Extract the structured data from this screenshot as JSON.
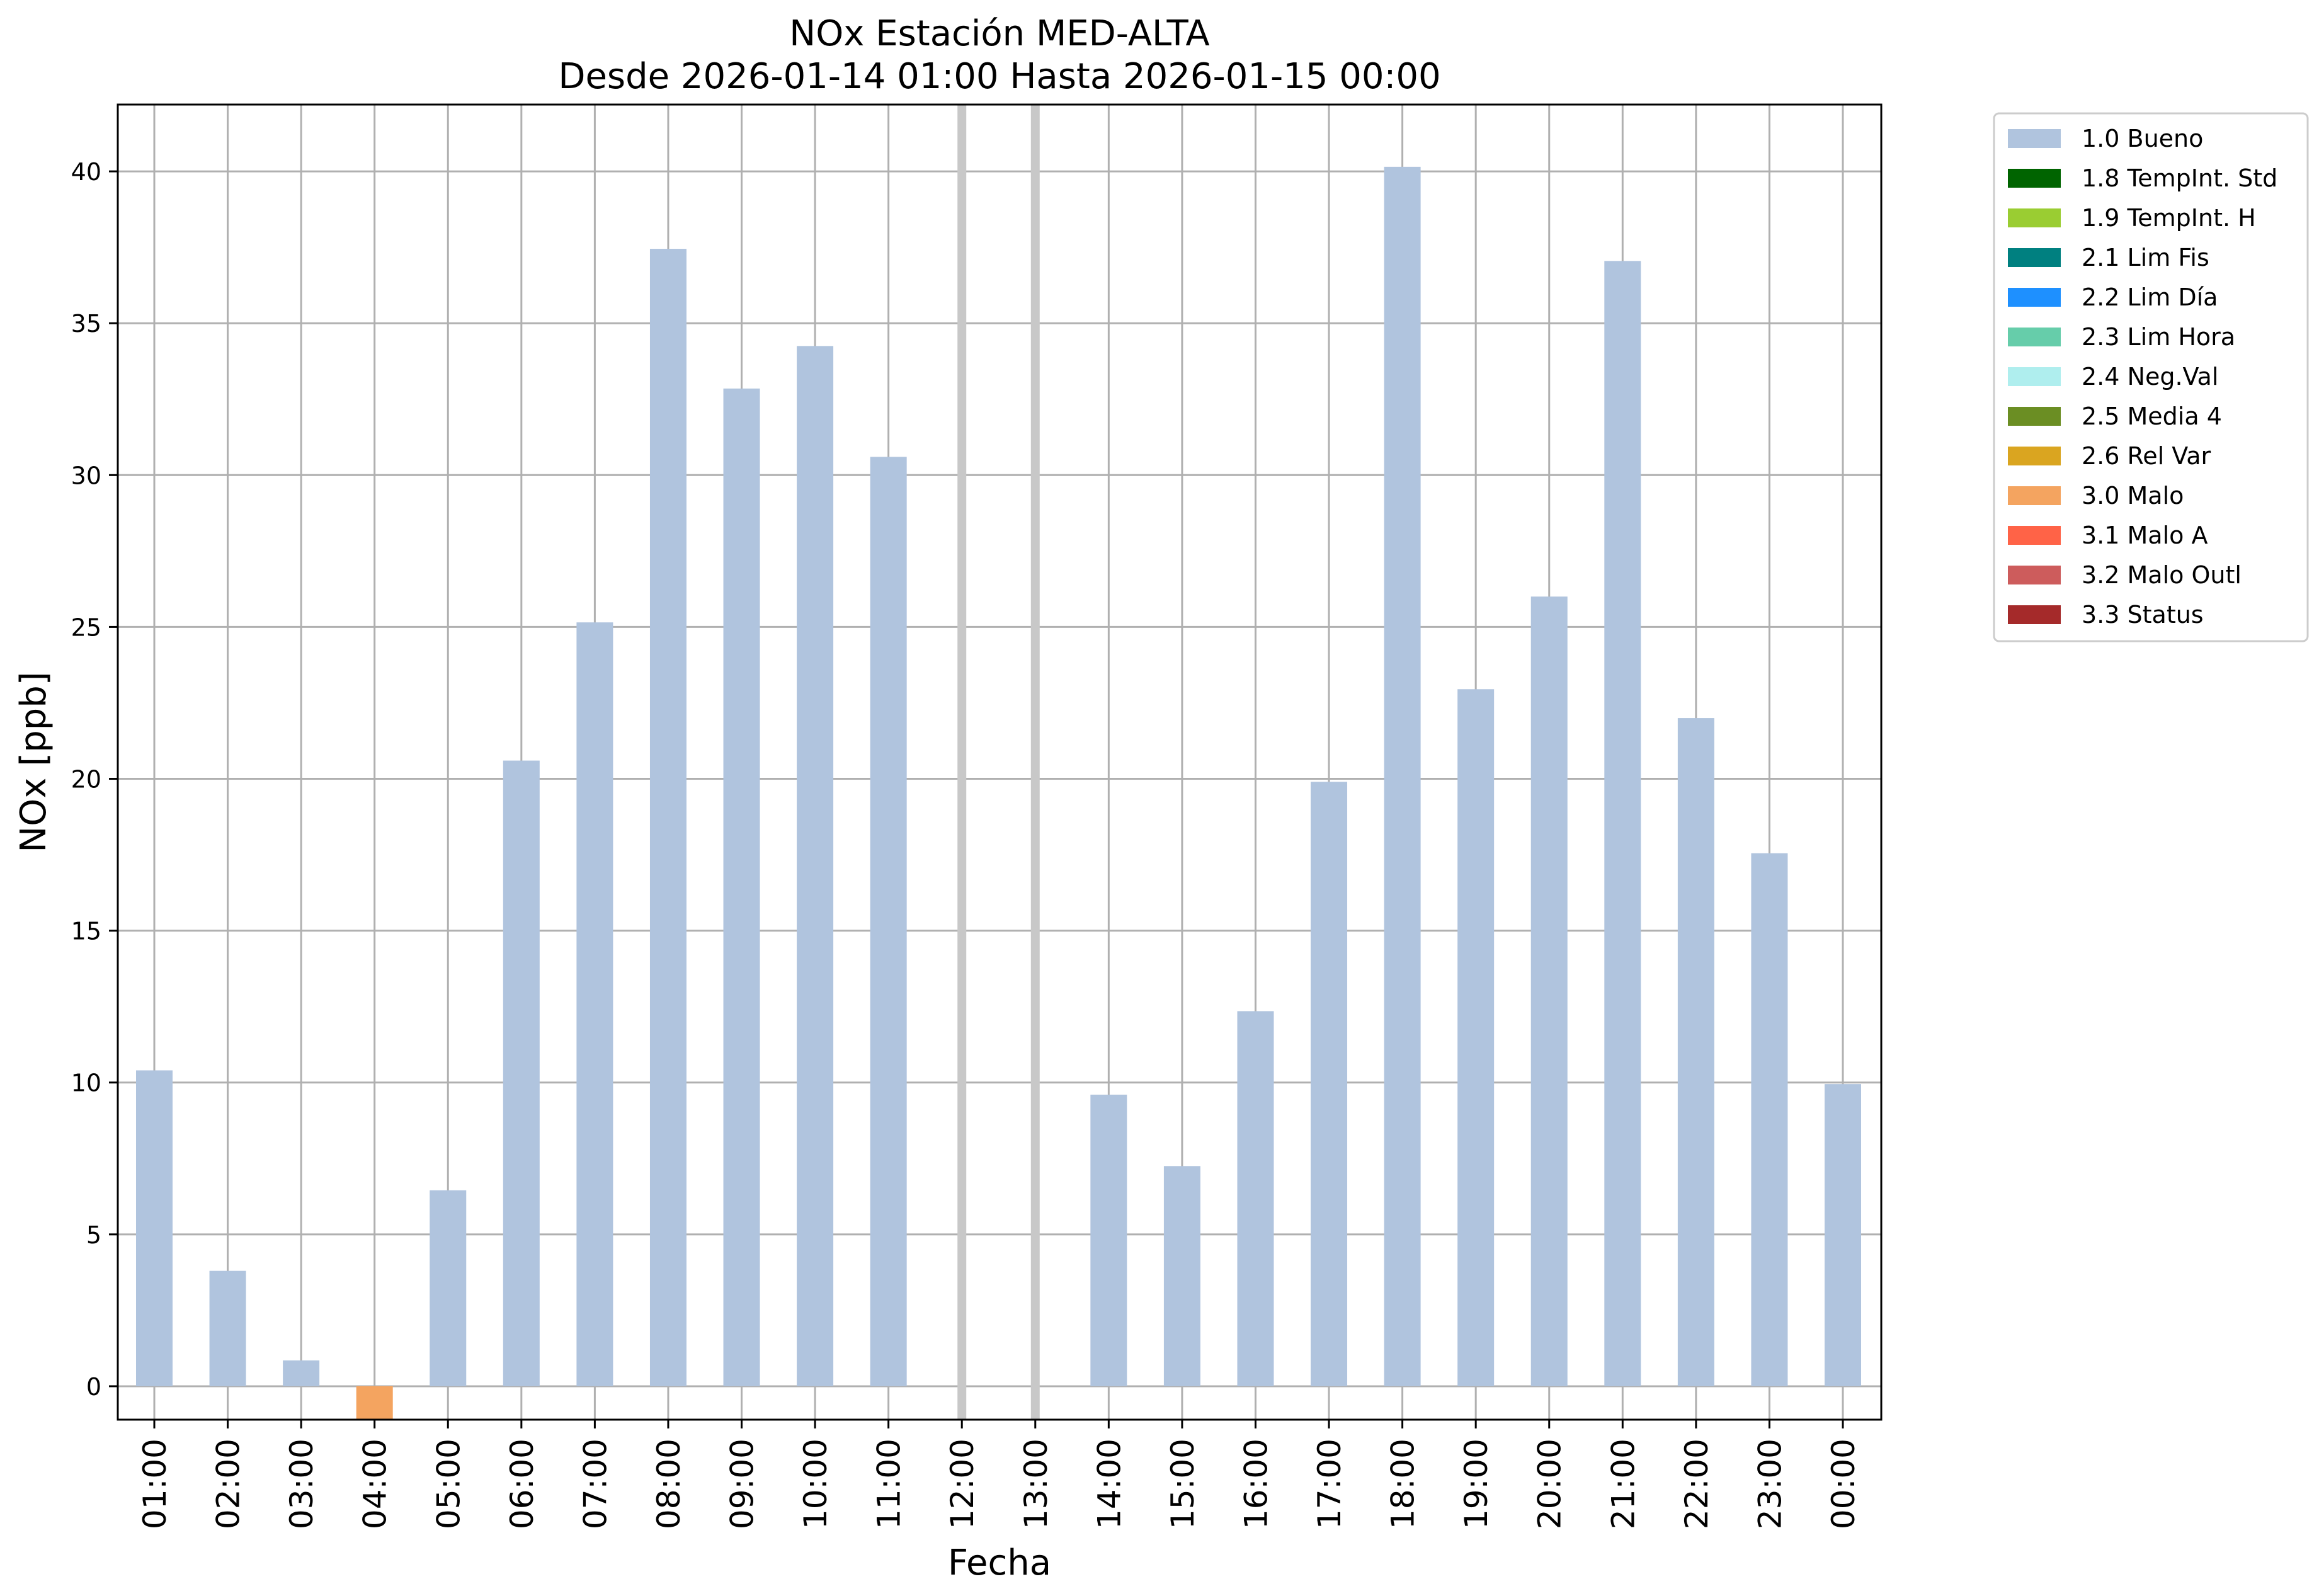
{
  "chart_data": {
    "type": "bar",
    "title_line1": "NOx Estación MED-ALTA",
    "title_line2": "Desde 2026-01-14 01:00 Hasta 2026-01-15 00:00",
    "xlabel": "Fecha",
    "ylabel": "NOx [ppb]",
    "ylim": [
      -1.1,
      42.2
    ],
    "yticks": [
      0,
      5,
      10,
      15,
      20,
      25,
      30,
      35,
      40
    ],
    "grid": true,
    "legend_position": "outside-right-top",
    "categories": [
      "01:00",
      "02:00",
      "03:00",
      "04:00",
      "05:00",
      "06:00",
      "07:00",
      "08:00",
      "09:00",
      "10:00",
      "11:00",
      "12:00",
      "13:00",
      "14:00",
      "15:00",
      "16:00",
      "17:00",
      "18:00",
      "19:00",
      "20:00",
      "21:00",
      "22:00",
      "23:00",
      "00:00"
    ],
    "bars": [
      {
        "value": 10.4,
        "flag": "1.0 Bueno"
      },
      {
        "value": 3.8,
        "flag": "1.0 Bueno"
      },
      {
        "value": 0.85,
        "flag": "1.0 Bueno"
      },
      {
        "value": -1.1,
        "flag": "3.0 Malo"
      },
      {
        "value": 6.45,
        "flag": "1.0 Bueno"
      },
      {
        "value": 20.6,
        "flag": "1.0 Bueno"
      },
      {
        "value": 25.15,
        "flag": "1.0 Bueno"
      },
      {
        "value": 37.45,
        "flag": "1.0 Bueno"
      },
      {
        "value": 32.85,
        "flag": "1.0 Bueno"
      },
      {
        "value": 34.25,
        "flag": "1.0 Bueno"
      },
      {
        "value": 30.6,
        "flag": "1.0 Bueno"
      },
      {
        "value": null,
        "flag": "missing"
      },
      {
        "value": null,
        "flag": "missing"
      },
      {
        "value": 9.6,
        "flag": "1.0 Bueno"
      },
      {
        "value": 7.25,
        "flag": "1.0 Bueno"
      },
      {
        "value": 12.35,
        "flag": "1.0 Bueno"
      },
      {
        "value": 19.9,
        "flag": "1.0 Bueno"
      },
      {
        "value": 40.15,
        "flag": "1.0 Bueno"
      },
      {
        "value": 22.95,
        "flag": "1.0 Bueno"
      },
      {
        "value": 26.0,
        "flag": "1.0 Bueno"
      },
      {
        "value": 37.05,
        "flag": "1.0 Bueno"
      },
      {
        "value": 22.0,
        "flag": "1.0 Bueno"
      },
      {
        "value": 17.55,
        "flag": "1.0 Bueno"
      },
      {
        "value": 9.95,
        "flag": "1.0 Bueno"
      }
    ],
    "missing_marker_color": "#c8c8c8",
    "legend": [
      {
        "label": "1.0 Bueno",
        "color": "#b0c4de"
      },
      {
        "label": "1.8 TempInt. Std",
        "color": "#006400"
      },
      {
        "label": "1.9 TempInt. H",
        "color": "#9acd32"
      },
      {
        "label": "2.1 Lim Fis",
        "color": "#008080"
      },
      {
        "label": "2.2 Lim Día",
        "color": "#1e90ff"
      },
      {
        "label": "2.3 Lim Hora",
        "color": "#66cdaa"
      },
      {
        "label": "2.4 Neg.Val",
        "color": "#afeeee"
      },
      {
        "label": "2.5 Media 4",
        "color": "#6b8e23"
      },
      {
        "label": "2.6 Rel Var",
        "color": "#daa520"
      },
      {
        "label": "3.0 Malo",
        "color": "#f4a460"
      },
      {
        "label": "3.1 Malo A",
        "color": "#ff6347"
      },
      {
        "label": "3.2 Malo Outl",
        "color": "#cd5c5c"
      },
      {
        "label": "3.3 Status",
        "color": "#a52a2a"
      }
    ]
  }
}
